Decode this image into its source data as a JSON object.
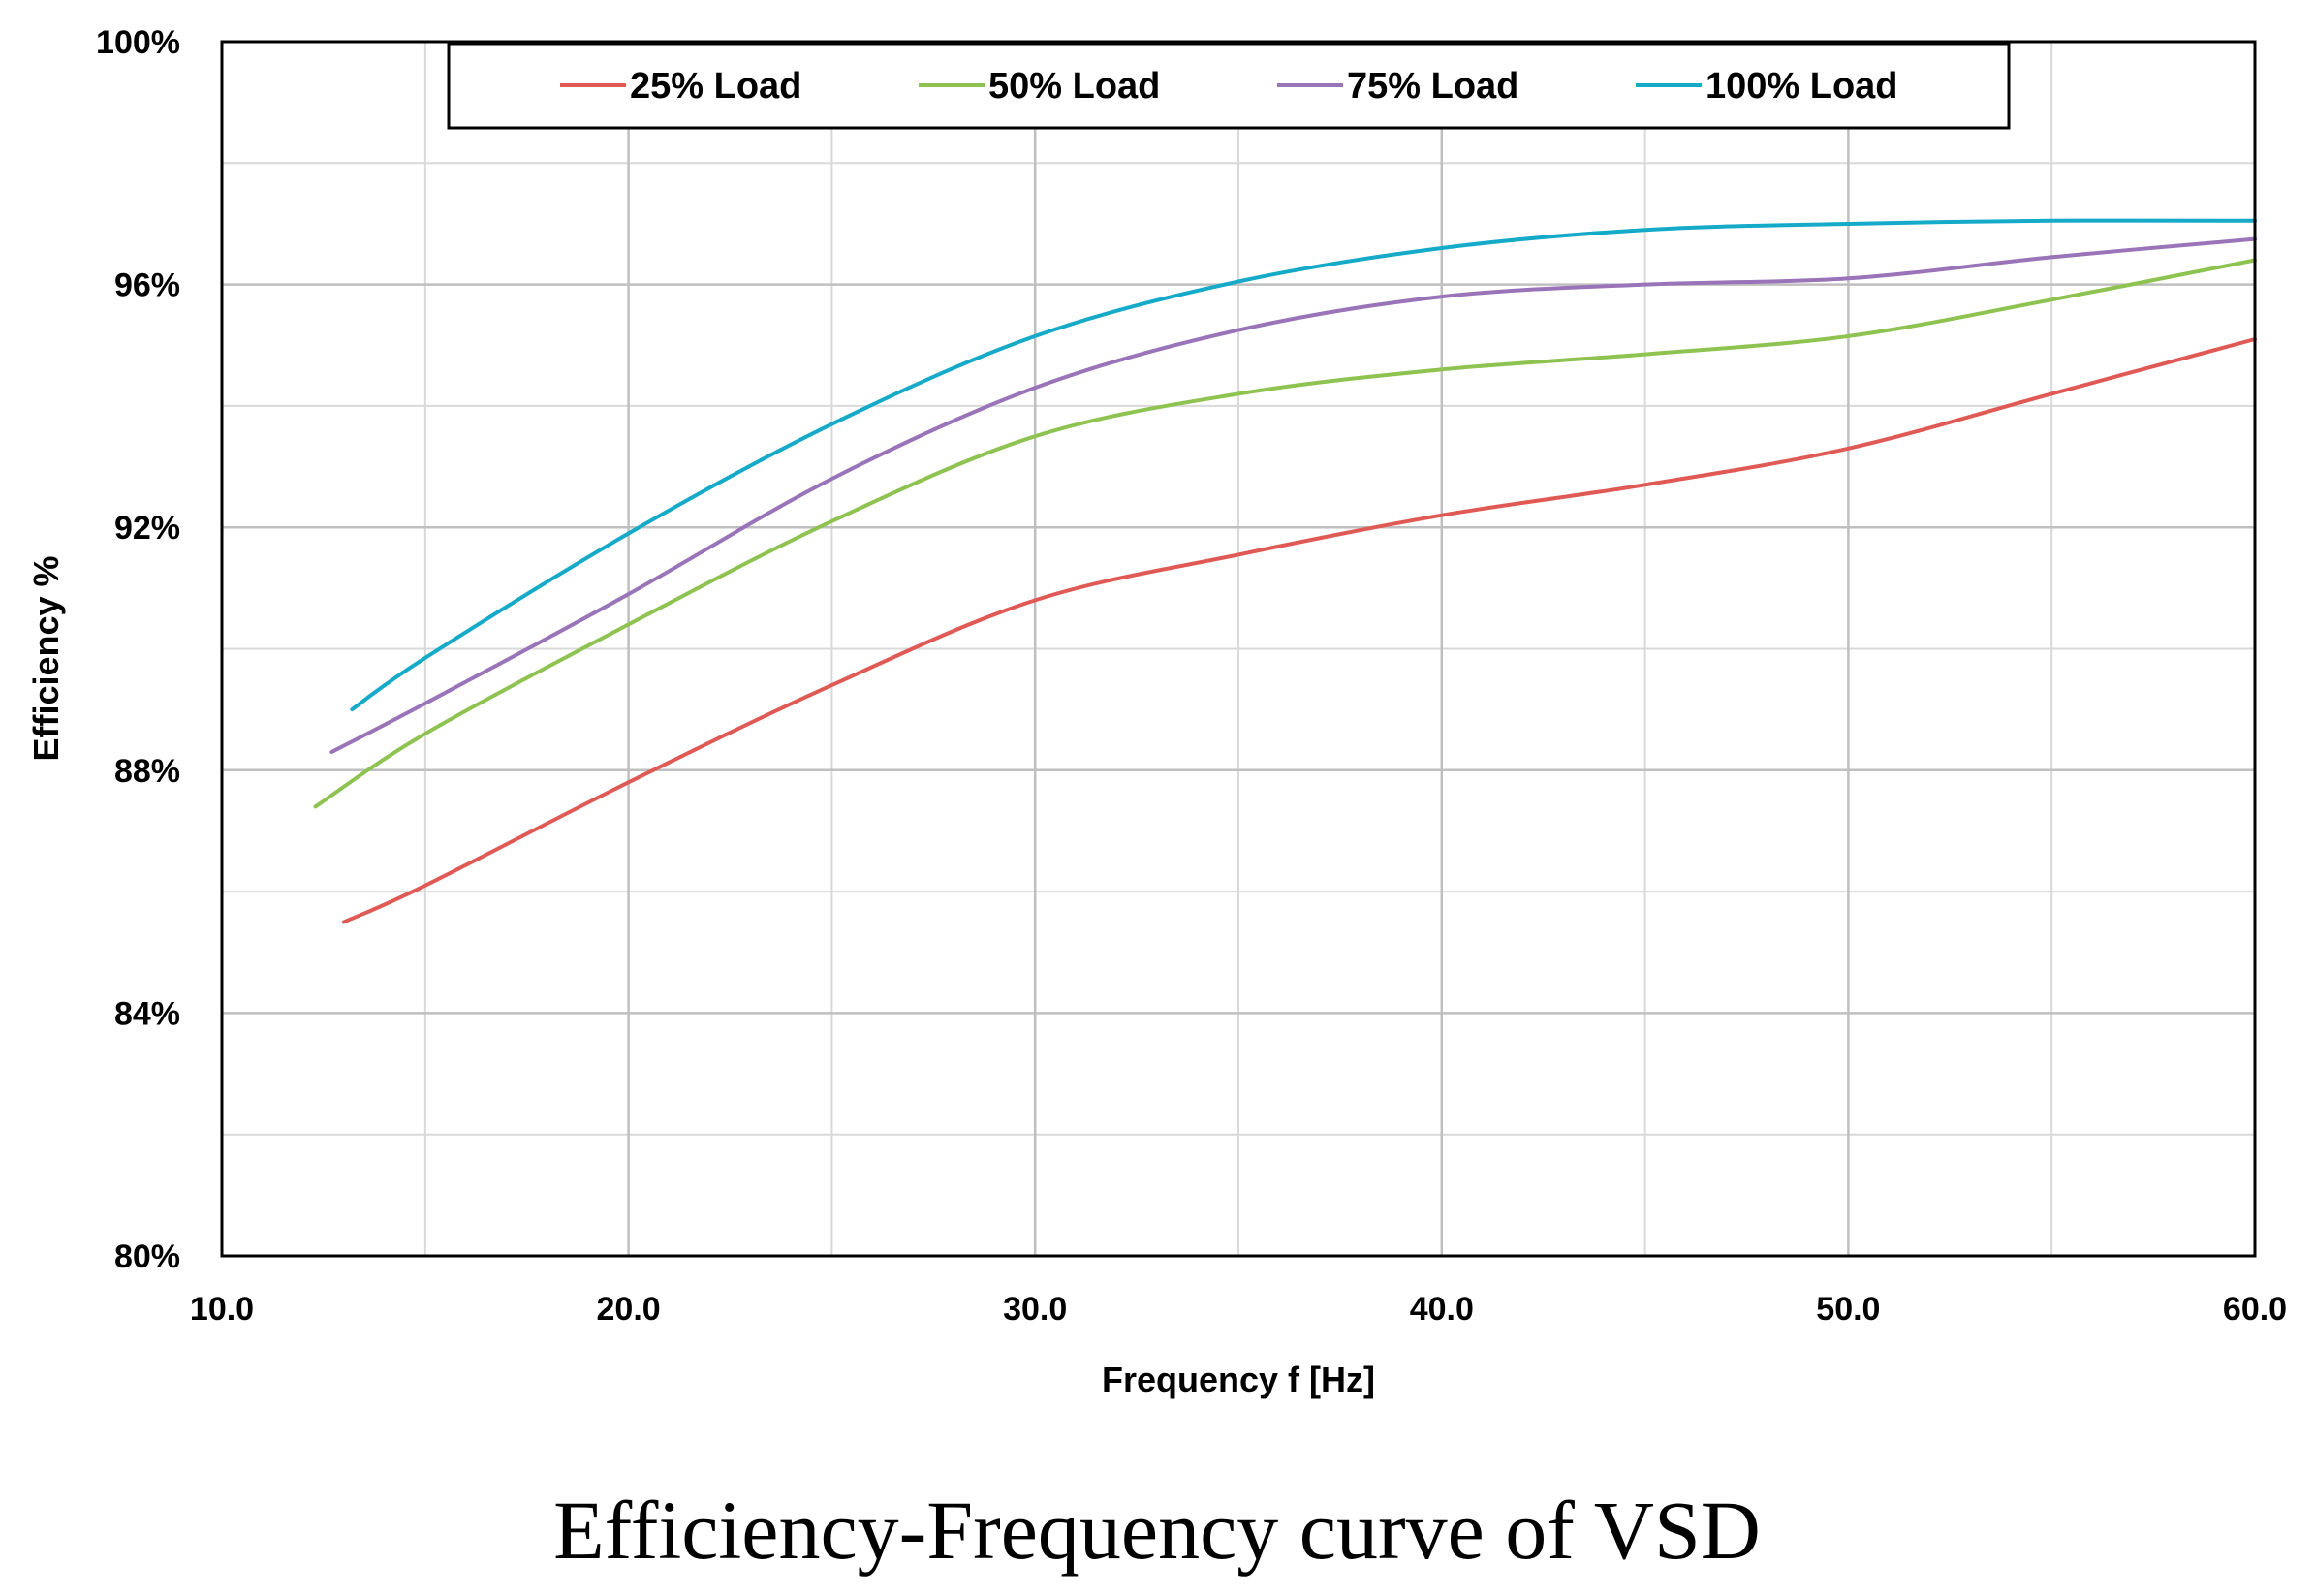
{
  "chart_data": {
    "type": "line",
    "title": "",
    "caption": "Efficiency-Frequency curve of VSD",
    "xlabel": "Frequency f [Hz]",
    "ylabel": "Efficiency %",
    "xlim": [
      10,
      60
    ],
    "ylim": [
      80,
      100
    ],
    "x_ticks": [
      10,
      20,
      30,
      40,
      50,
      60
    ],
    "x_tick_labels": [
      "10.0",
      "20.0",
      "30.0",
      "40.0",
      "50.0",
      "60.0"
    ],
    "x_minor_grid": [
      15,
      25,
      35,
      45,
      55
    ],
    "y_ticks": [
      80,
      84,
      88,
      92,
      96,
      100
    ],
    "y_tick_labels": [
      "80%",
      "84%",
      "88%",
      "92%",
      "96%",
      "100%"
    ],
    "y_minor_grid": [
      82,
      86,
      90,
      94,
      98
    ],
    "grid": true,
    "legend_position": "top",
    "series": [
      {
        "name": "25% Load",
        "color": "#e05a55",
        "points": [
          [
            13.0,
            85.5
          ],
          [
            15,
            86.1
          ],
          [
            20,
            87.8
          ],
          [
            25,
            89.4
          ],
          [
            30,
            90.8
          ],
          [
            35,
            91.55
          ],
          [
            40,
            92.2
          ],
          [
            45,
            92.7
          ],
          [
            50,
            93.3
          ],
          [
            55,
            94.2
          ],
          [
            60,
            95.1
          ]
        ]
      },
      {
        "name": "50% Load",
        "color": "#8fc351",
        "points": [
          [
            12.3,
            87.4
          ],
          [
            15,
            88.6
          ],
          [
            20,
            90.4
          ],
          [
            25,
            92.1
          ],
          [
            30,
            93.5
          ],
          [
            35,
            94.2
          ],
          [
            40,
            94.6
          ],
          [
            45,
            94.85
          ],
          [
            50,
            95.15
          ],
          [
            55,
            95.75
          ],
          [
            60,
            96.4
          ]
        ]
      },
      {
        "name": "75% Load",
        "color": "#9a74b9",
        "points": [
          [
            12.7,
            88.3
          ],
          [
            15,
            89.1
          ],
          [
            20,
            90.9
          ],
          [
            25,
            92.8
          ],
          [
            30,
            94.3
          ],
          [
            35,
            95.25
          ],
          [
            40,
            95.8
          ],
          [
            45,
            96.0
          ],
          [
            50,
            96.1
          ],
          [
            55,
            96.45
          ],
          [
            60,
            96.75
          ]
        ]
      },
      {
        "name": "100% Load",
        "color": "#16aac9",
        "points": [
          [
            13.2,
            89.0
          ],
          [
            15,
            89.85
          ],
          [
            20,
            91.9
          ],
          [
            25,
            93.7
          ],
          [
            30,
            95.15
          ],
          [
            35,
            96.05
          ],
          [
            40,
            96.6
          ],
          [
            45,
            96.9
          ],
          [
            50,
            97.0
          ],
          [
            55,
            97.05
          ],
          [
            60,
            97.05
          ]
        ]
      }
    ]
  }
}
